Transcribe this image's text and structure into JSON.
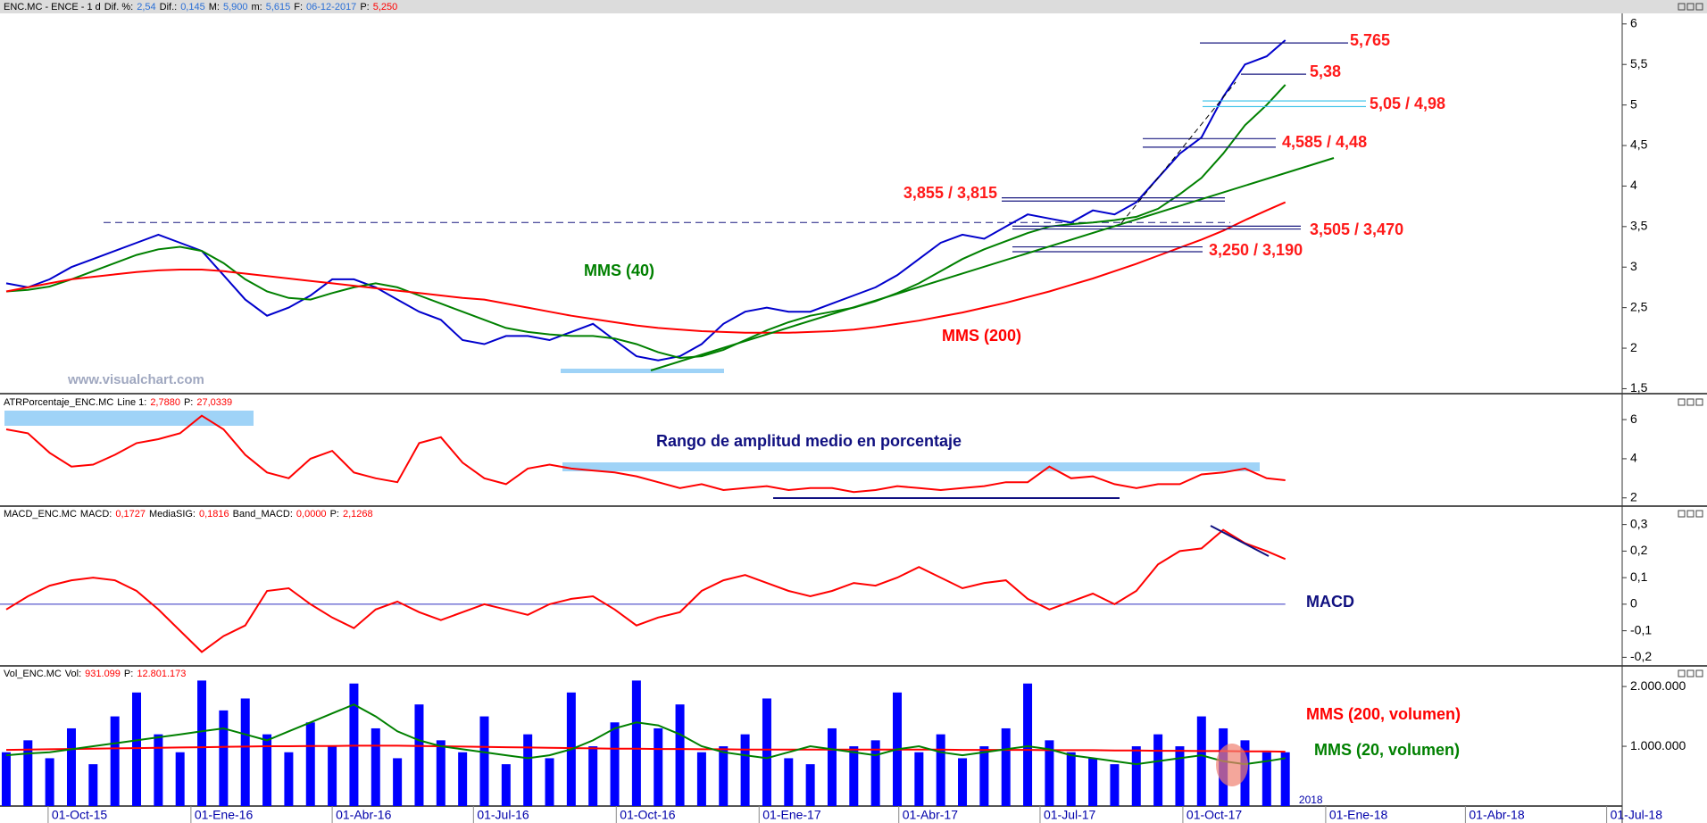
{
  "chart_data": {
    "type": "multi-panel",
    "watermark": "www.visualchart.com",
    "xlim": [
      "2015-08-31",
      "2018-07-11"
    ],
    "xticks": [
      {
        "value": "2015-10-01",
        "label": "01-Oct-15"
      },
      {
        "value": "2016-01-01",
        "label": "01-Ene-16"
      },
      {
        "value": "2016-04-01",
        "label": "01-Abr-16"
      },
      {
        "value": "2016-07-01",
        "label": "01-Jul-16"
      },
      {
        "value": "2016-10-01",
        "label": "01-Oct-16"
      },
      {
        "value": "2017-01-01",
        "label": "01-Ene-17"
      },
      {
        "value": "2017-04-01",
        "label": "01-Abr-17"
      },
      {
        "value": "2017-07-01",
        "label": "01-Jul-17"
      },
      {
        "value": "2017-10-01",
        "label": "01-Oct-17"
      },
      {
        "value": "2018-01-01",
        "label": "01-Ene-18"
      },
      {
        "value": "2018-04-01",
        "label": "01-Abr-18"
      },
      {
        "value": "2018-07-01",
        "label": "01-Jul-18"
      }
    ],
    "year_marks": [
      {
        "value": "2018-01-01",
        "label": "2018"
      }
    ],
    "x": [
      "2015-09-04",
      "2015-09-18",
      "2015-10-02",
      "2015-10-16",
      "2015-10-30",
      "2015-11-13",
      "2015-11-27",
      "2015-12-11",
      "2015-12-25",
      "2016-01-08",
      "2016-01-22",
      "2016-02-05",
      "2016-02-19",
      "2016-03-04",
      "2016-03-18",
      "2016-04-01",
      "2016-04-15",
      "2016-04-29",
      "2016-05-13",
      "2016-05-27",
      "2016-06-10",
      "2016-06-24",
      "2016-07-08",
      "2016-07-22",
      "2016-08-05",
      "2016-08-19",
      "2016-09-02",
      "2016-09-16",
      "2016-09-30",
      "2016-10-14",
      "2016-10-28",
      "2016-11-11",
      "2016-11-25",
      "2016-12-09",
      "2016-12-23",
      "2017-01-06",
      "2017-01-20",
      "2017-02-03",
      "2017-02-17",
      "2017-03-03",
      "2017-03-17",
      "2017-03-31",
      "2017-04-14",
      "2017-04-28",
      "2017-05-12",
      "2017-05-26",
      "2017-06-09",
      "2017-06-23",
      "2017-07-07",
      "2017-07-21",
      "2017-08-04",
      "2017-08-18",
      "2017-09-01",
      "2017-09-15",
      "2017-09-29",
      "2017-10-13",
      "2017-10-27",
      "2017-11-10",
      "2017-11-24",
      "2017-12-06"
    ],
    "panels": [
      {
        "type": "line",
        "info": [
          {
            "text": "ENC.MC - ENCE - 1 d",
            "color": "#000000"
          },
          {
            "text": "Dif. %:",
            "color": "#000000"
          },
          {
            "text": "2,54",
            "color": "#2a6fd6"
          },
          {
            "text": "Dif.:",
            "color": "#000000"
          },
          {
            "text": "0,145",
            "color": "#2a6fd6"
          },
          {
            "text": "M:",
            "color": "#000000"
          },
          {
            "text": "5,900",
            "color": "#2a6fd6"
          },
          {
            "text": "m:",
            "color": "#000000"
          },
          {
            "text": "5,615",
            "color": "#2a6fd6"
          },
          {
            "text": "F:",
            "color": "#000000"
          },
          {
            "text": "06-12-2017",
            "color": "#2a6fd6"
          },
          {
            "text": "P:",
            "color": "#000000"
          },
          {
            "text": "5,250",
            "color": "#ff0000"
          }
        ],
        "ylim": [
          1.45,
          6.13
        ],
        "yticks": [
          {
            "value": 1.5,
            "label": "1,5"
          },
          2,
          {
            "value": 2.5,
            "label": "2,5"
          },
          3,
          {
            "value": 3.5,
            "label": "3,5"
          },
          4,
          {
            "value": 4.5,
            "label": "4,5"
          },
          5,
          {
            "value": 5.5,
            "label": "5,5"
          },
          6
        ],
        "series": [
          {
            "color": "#0000cc",
            "values": [
              2.8,
              2.75,
              2.85,
              3.0,
              3.1,
              3.2,
              3.3,
              3.4,
              3.3,
              3.2,
              2.9,
              2.6,
              2.4,
              2.5,
              2.65,
              2.85,
              2.85,
              2.75,
              2.6,
              2.45,
              2.35,
              2.1,
              2.05,
              2.15,
              2.15,
              2.1,
              2.2,
              2.3,
              2.1,
              1.9,
              1.85,
              1.9,
              2.05,
              2.3,
              2.45,
              2.5,
              2.45,
              2.45,
              2.55,
              2.65,
              2.75,
              2.9,
              3.1,
              3.3,
              3.4,
              3.35,
              3.5,
              3.65,
              3.6,
              3.55,
              3.7,
              3.65,
              3.8,
              4.1,
              4.4,
              4.6,
              5.1,
              5.5,
              5.6,
              5.8
            ]
          },
          {
            "name": "MMS (40)",
            "color": "#008000",
            "values": [
              2.7,
              2.72,
              2.76,
              2.85,
              2.95,
              3.05,
              3.15,
              3.22,
              3.25,
              3.2,
              3.05,
              2.85,
              2.7,
              2.62,
              2.6,
              2.68,
              2.75,
              2.8,
              2.75,
              2.65,
              2.55,
              2.45,
              2.35,
              2.25,
              2.2,
              2.17,
              2.15,
              2.15,
              2.12,
              2.05,
              1.95,
              1.88,
              1.9,
              1.98,
              2.1,
              2.22,
              2.32,
              2.4,
              2.45,
              2.5,
              2.58,
              2.68,
              2.8,
              2.95,
              3.1,
              3.22,
              3.32,
              3.42,
              3.5,
              3.53,
              3.55,
              3.58,
              3.62,
              3.72,
              3.9,
              4.1,
              4.4,
              4.75,
              5.0,
              5.25
            ]
          },
          {
            "name": "MMS (200)",
            "color": "#ff0000",
            "values": [
              2.7,
              2.75,
              2.8,
              2.85,
              2.88,
              2.91,
              2.94,
              2.96,
              2.97,
              2.97,
              2.95,
              2.92,
              2.89,
              2.86,
              2.83,
              2.8,
              2.77,
              2.74,
              2.71,
              2.68,
              2.65,
              2.62,
              2.6,
              2.55,
              2.5,
              2.45,
              2.4,
              2.36,
              2.32,
              2.28,
              2.25,
              2.23,
              2.21,
              2.2,
              2.19,
              2.19,
              2.19,
              2.2,
              2.21,
              2.23,
              2.26,
              2.3,
              2.34,
              2.39,
              2.44,
              2.5,
              2.56,
              2.63,
              2.7,
              2.78,
              2.86,
              2.95,
              3.04,
              3.14,
              3.24,
              3.34,
              3.45,
              3.58,
              3.7,
              3.8
            ]
          }
        ],
        "hline": {
          "value": 3.55,
          "color": "#1a1a80"
        },
        "levels": [
          {
            "label": "5,765",
            "values": [
              5.765
            ],
            "color": "#1a1a80"
          },
          {
            "label": "5,38",
            "values": [
              5.38
            ],
            "color": "#1a1a80"
          },
          {
            "label": "5,05 / 4,98",
            "values": [
              5.05,
              4.98
            ],
            "color": "#33c0e8"
          },
          {
            "label": "4,585 / 4,48",
            "values": [
              4.585,
              4.48
            ],
            "color": "#1a1a80"
          },
          {
            "label": "3,855 / 3,815",
            "values": [
              3.855,
              3.815
            ],
            "color": "#1a1a80"
          },
          {
            "label": "3,505 / 3,470",
            "values": [
              3.505,
              3.47
            ],
            "color": "#1a1a80"
          },
          {
            "label": "3,250 / 3,190",
            "values": [
              3.25,
              3.19
            ],
            "color": "#1a1a80"
          }
        ]
      },
      {
        "type": "line",
        "info": [
          {
            "text": "ATRPorcentaje_ENC.MC",
            "color": "#000000"
          },
          {
            "text": "Line 1:",
            "color": "#000000"
          },
          {
            "text": "2,7880",
            "color": "#ff0000"
          },
          {
            "text": "P:",
            "color": "#000000"
          },
          {
            "text": "27,0339",
            "color": "#ff0000"
          }
        ],
        "annotation": "Rango de amplitud medio en porcentaje",
        "ylim": [
          1.67,
          7.28
        ],
        "yticks": [
          2,
          4,
          6
        ],
        "series": [
          {
            "color": "#ff0000",
            "values": [
              5.5,
              5.3,
              4.3,
              3.6,
              3.7,
              4.2,
              4.8,
              5.0,
              5.3,
              6.2,
              5.5,
              4.2,
              3.3,
              3.0,
              4.0,
              4.4,
              3.3,
              3.0,
              2.8,
              4.8,
              5.1,
              3.8,
              3.0,
              2.7,
              3.5,
              3.7,
              3.5,
              3.4,
              3.3,
              3.1,
              2.8,
              2.5,
              2.7,
              2.4,
              2.5,
              2.6,
              2.4,
              2.5,
              2.5,
              2.3,
              2.4,
              2.6,
              2.5,
              2.4,
              2.5,
              2.6,
              2.8,
              2.8,
              3.6,
              3.0,
              3.1,
              2.7,
              2.5,
              2.7,
              2.7,
              3.2,
              3.3,
              3.5,
              3.0,
              2.9
            ]
          }
        ]
      },
      {
        "type": "line",
        "info": [
          {
            "text": "MACD_ENC.MC",
            "color": "#000000"
          },
          {
            "text": "MACD:",
            "color": "#000000"
          },
          {
            "text": "0,1727",
            "color": "#ff0000"
          },
          {
            "text": "MediaSIG:",
            "color": "#000000"
          },
          {
            "text": "0,1816",
            "color": "#ff0000"
          },
          {
            "text": "Band_MACD:",
            "color": "#000000"
          },
          {
            "text": "0,0000",
            "color": "#ff0000"
          },
          {
            "text": "P:",
            "color": "#000000"
          },
          {
            "text": "2,1268",
            "color": "#ff0000"
          }
        ],
        "annotation": "MACD",
        "ylim": [
          -0.229,
          0.366
        ],
        "yticks": [
          {
            "value": 0.3,
            "label": "0,3"
          },
          {
            "value": 0.2,
            "label": "0,2"
          },
          {
            "value": 0.1,
            "label": "0,1"
          },
          0,
          {
            "value": -0.1,
            "label": "-0,1"
          },
          {
            "value": -0.2,
            "label": "-0,2"
          }
        ],
        "series": [
          {
            "color": "#ff0000",
            "values": [
              -0.02,
              0.03,
              0.07,
              0.09,
              0.1,
              0.09,
              0.05,
              -0.02,
              -0.1,
              -0.18,
              -0.12,
              -0.08,
              0.05,
              0.06,
              0.0,
              -0.05,
              -0.09,
              -0.02,
              0.01,
              -0.03,
              -0.06,
              -0.03,
              0.0,
              -0.02,
              -0.04,
              0.0,
              0.02,
              0.03,
              -0.02,
              -0.08,
              -0.05,
              -0.03,
              0.05,
              0.09,
              0.11,
              0.08,
              0.05,
              0.03,
              0.05,
              0.08,
              0.07,
              0.1,
              0.14,
              0.1,
              0.06,
              0.08,
              0.09,
              0.02,
              -0.02,
              0.01,
              0.04,
              0.0,
              0.05,
              0.15,
              0.2,
              0.21,
              0.28,
              0.23,
              0.2,
              0.17
            ]
          }
        ]
      },
      {
        "type": "bar",
        "info": [
          {
            "text": "Vol_ENC.MC",
            "color": "#000000"
          },
          {
            "text": "Vol:",
            "color": "#000000"
          },
          {
            "text": "931.099",
            "color": "#ff0000"
          },
          {
            "text": "P:",
            "color": "#000000"
          },
          {
            "text": "12.801.173",
            "color": "#ff0000"
          }
        ],
        "ylim": [
          0,
          2330000
        ],
        "yticks": [
          {
            "value": 1000000,
            "label": "1.000.000"
          },
          {
            "value": 2000000,
            "label": "2.000.000"
          }
        ],
        "series": [
          {
            "color": "#0000ff",
            "values": [
              900000,
              1100000,
              800000,
              1300000,
              700000,
              1500000,
              1900000,
              1200000,
              900000,
              2100000,
              1600000,
              1800000,
              1200000,
              900000,
              1400000,
              1000000,
              2050000,
              1300000,
              800000,
              1700000,
              1100000,
              900000,
              1500000,
              700000,
              1200000,
              800000,
              1900000,
              1000000,
              1400000,
              2100000,
              1300000,
              1700000,
              900000,
              1000000,
              1200000,
              1800000,
              800000,
              700000,
              1300000,
              1000000,
              1100000,
              1900000,
              900000,
              1200000,
              800000,
              1000000,
              1300000,
              2050000,
              1100000,
              900000,
              800000,
              700000,
              1000000,
              1200000,
              1000000,
              1500000,
              1300000,
              1100000,
              900000,
              900000
            ]
          },
          {
            "type": "line",
            "name": "MMS (200, volumen)",
            "color": "#ff0000",
            "values": [
              940000,
              945000,
              950000,
              955000,
              960000,
              965000,
              970000,
              975000,
              980000,
              985000,
              990000,
              995000,
              1000000,
              1000000,
              1005000,
              1005000,
              1010000,
              1010000,
              1010000,
              1005000,
              1000000,
              995000,
              990000,
              985000,
              980000,
              975000,
              970000,
              965000,
              960000,
              960000,
              955000,
              955000,
              950000,
              950000,
              945000,
              945000,
              945000,
              945000,
              945000,
              945000,
              945000,
              945000,
              945000,
              945000,
              940000,
              940000,
              940000,
              940000,
              935000,
              935000,
              935000,
              930000,
              930000,
              925000,
              925000,
              920000,
              920000,
              915000,
              915000,
              910000
            ]
          },
          {
            "type": "line",
            "name": "MMS (20, volumen)",
            "color": "#008000",
            "values": [
              850000,
              880000,
              900000,
              950000,
              1000000,
              1050000,
              1100000,
              1150000,
              1200000,
              1250000,
              1300000,
              1200000,
              1100000,
              1250000,
              1400000,
              1550000,
              1700000,
              1500000,
              1250000,
              1100000,
              1000000,
              950000,
              900000,
              850000,
              800000,
              850000,
              950000,
              1100000,
              1300000,
              1400000,
              1350000,
              1200000,
              1000000,
              900000,
              850000,
              800000,
              900000,
              1000000,
              950000,
              900000,
              850000,
              950000,
              1000000,
              900000,
              850000,
              900000,
              950000,
              1000000,
              950000,
              850000,
              800000,
              750000,
              700000,
              750000,
              800000,
              850000,
              750000,
              700000,
              750000,
              800000
            ]
          }
        ]
      }
    ]
  }
}
